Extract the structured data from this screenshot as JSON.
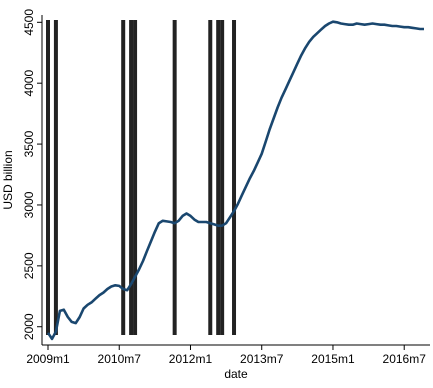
{
  "chart_data": {
    "type": "line",
    "y_label": "USD billion",
    "x_label": "date",
    "categories": [
      "2009m1",
      "2009m2",
      "2009m3",
      "2009m4",
      "2009m5",
      "2009m6",
      "2009m7",
      "2009m8",
      "2009m9",
      "2009m10",
      "2009m11",
      "2009m12",
      "2010m1",
      "2010m2",
      "2010m3",
      "2010m4",
      "2010m5",
      "2010m6",
      "2010m7",
      "2010m8",
      "2010m9",
      "2010m10",
      "2010m11",
      "2010m12",
      "2011m1",
      "2011m2",
      "2011m3",
      "2011m4",
      "2011m5",
      "2011m6",
      "2011m7",
      "2011m8",
      "2011m9",
      "2011m10",
      "2011m11",
      "2011m12",
      "2012m1",
      "2012m2",
      "2012m3",
      "2012m4",
      "2012m5",
      "2012m6",
      "2012m7",
      "2012m8",
      "2012m9",
      "2012m10",
      "2012m11",
      "2012m12",
      "2013m1",
      "2013m2",
      "2013m3",
      "2013m4",
      "2013m5",
      "2013m6",
      "2013m7",
      "2013m8",
      "2013m9",
      "2013m10",
      "2013m11",
      "2013m12",
      "2014m1",
      "2014m2",
      "2014m3",
      "2014m4",
      "2014m5",
      "2014m6",
      "2014m7",
      "2014m8",
      "2014m9",
      "2014m10",
      "2014m11",
      "2014m12",
      "2015m1",
      "2015m2",
      "2015m3",
      "2015m4",
      "2015m5",
      "2015m6",
      "2015m7",
      "2015m8",
      "2015m9",
      "2015m10",
      "2015m11",
      "2015m12",
      "2016m1",
      "2016m2",
      "2016m3",
      "2016m4",
      "2016m5",
      "2016m6",
      "2016m7",
      "2016m8",
      "2016m9",
      "2016m10",
      "2016m11",
      "2016m12"
    ],
    "series": [
      {
        "color": "#1a476f",
        "values": [
          1950,
          1900,
          1960,
          2130,
          2140,
          2080,
          2040,
          2030,
          2080,
          2150,
          2180,
          2200,
          2230,
          2260,
          2280,
          2310,
          2330,
          2340,
          2335,
          2310,
          2300,
          2350,
          2410,
          2470,
          2540,
          2620,
          2700,
          2780,
          2850,
          2870,
          2865,
          2860,
          2850,
          2870,
          2910,
          2930,
          2910,
          2880,
          2860,
          2860,
          2860,
          2850,
          2840,
          2830,
          2830,
          2850,
          2900,
          2950,
          3010,
          3080,
          3150,
          3220,
          3280,
          3350,
          3420,
          3520,
          3620,
          3710,
          3800,
          3880,
          3950,
          4020,
          4090,
          4160,
          4230,
          4290,
          4340,
          4380,
          4410,
          4440,
          4470,
          4490,
          4505,
          4500,
          4490,
          4485,
          4480,
          4480,
          4490,
          4485,
          4480,
          4485,
          4490,
          4485,
          4480,
          4480,
          4475,
          4470,
          4470,
          4465,
          4460,
          4460,
          4455,
          4450,
          4445,
          4445
        ]
      }
    ],
    "events": [
      "2009m1",
      "2009m3",
      "2010m8",
      "2010m10",
      "2010m11",
      "2011m9",
      "2012m6",
      "2012m8",
      "2012m9",
      "2012m12"
    ],
    "event_color": "#222222",
    "xticks": [
      "2009m1",
      "2010m7",
      "2012m1",
      "2013m7",
      "2015m1",
      "2016m7"
    ],
    "ylim": [
      1850,
      4560
    ],
    "yticks": [
      2000,
      2500,
      3000,
      3500,
      4000,
      4500
    ]
  }
}
